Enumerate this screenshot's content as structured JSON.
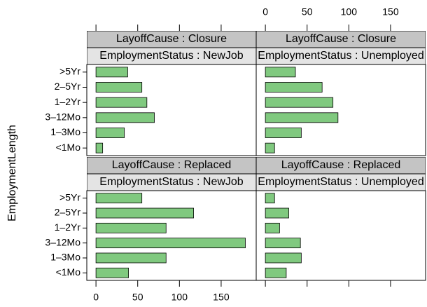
{
  "chart_data": [
    {
      "type": "bar",
      "orientation": "horizontal",
      "y_label": "EmploymentLength",
      "strips": [
        "LayoffCause : Closure",
        "EmploymentStatus : NewJob"
      ],
      "categories": [
        "<1Mo",
        "1–3Mo",
        "3–12Mo",
        "1–2Yr",
        "2–5Yr",
        ">5Yr"
      ],
      "values": [
        8,
        34,
        70,
        61,
        55,
        38
      ],
      "color": "#80c97f",
      "xlim": [
        -11,
        192
      ]
    },
    {
      "type": "bar",
      "orientation": "horizontal",
      "strips": [
        "LayoffCause : Closure",
        "EmploymentStatus : Unemployed"
      ],
      "values": [
        11,
        43,
        87,
        81,
        68,
        36
      ],
      "color": "#80c97f",
      "xlim": [
        -11,
        192
      ],
      "xticks": [
        0,
        50,
        100,
        150
      ]
    },
    {
      "type": "bar",
      "orientation": "horizontal",
      "strips": [
        "LayoffCause : Replaced",
        "EmploymentStatus : NewJob"
      ],
      "categories": [
        "<1Mo",
        "1–3Mo",
        "3–12Mo",
        "1–2Yr",
        "2–5Yr",
        ">5Yr"
      ],
      "values": [
        39,
        84,
        179,
        84,
        117,
        55
      ],
      "color": "#80c97f",
      "xlim": [
        -11,
        192
      ],
      "xticks": [
        0,
        50,
        100,
        150
      ]
    },
    {
      "type": "bar",
      "orientation": "horizontal",
      "strips": [
        "LayoffCause : Replaced",
        "EmploymentStatus : Unemployed"
      ],
      "values": [
        25,
        43,
        42,
        17,
        28,
        11
      ],
      "color": "#80c97f",
      "xlim": [
        -11,
        192
      ]
    }
  ]
}
